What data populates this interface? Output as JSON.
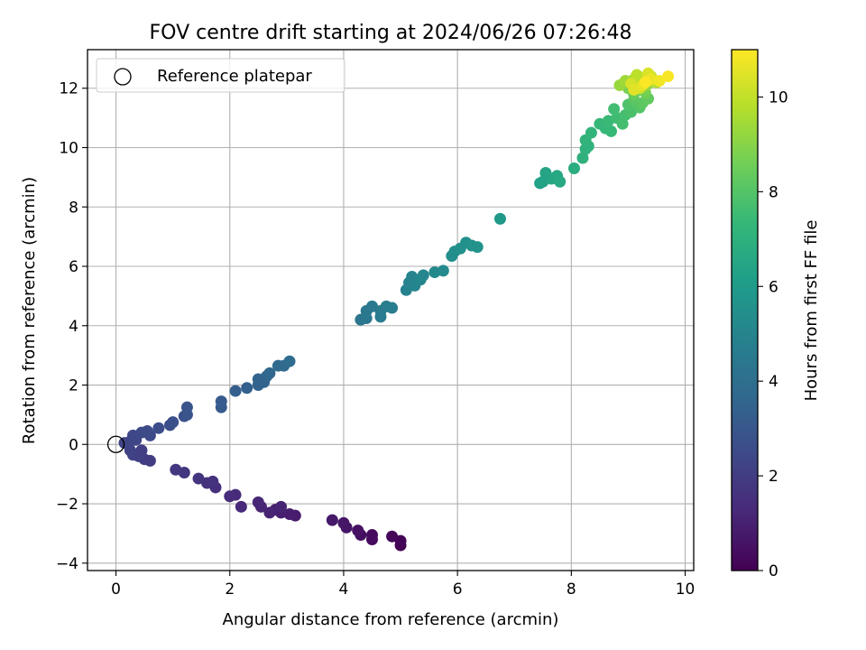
{
  "chart_data": {
    "type": "scatter",
    "title": "FOV centre drift starting at 2024/06/26 07:26:48",
    "xlabel": "Angular distance from reference (arcmin)",
    "ylabel": "Rotation from reference (arcmin)",
    "xlim": [
      -0.5,
      10.15
    ],
    "ylim": [
      -4.25,
      13.3
    ],
    "xticks": [
      0,
      2,
      4,
      6,
      8,
      10
    ],
    "yticks": [
      -4,
      -2,
      0,
      2,
      4,
      6,
      8,
      10,
      12
    ],
    "xtick_labels": [
      "0",
      "2",
      "4",
      "6",
      "8",
      "10"
    ],
    "ytick_labels": [
      "−4",
      "−2",
      "0",
      "2",
      "4",
      "6",
      "8",
      "10",
      "12"
    ],
    "grid": true,
    "legend": {
      "placement": "upper-left",
      "entries": [
        {
          "label": "Reference platepar",
          "marker": "open-circle"
        }
      ]
    },
    "reference_point": {
      "x": 0,
      "y": 0
    },
    "colorbar": {
      "label": "Hours from first FF file",
      "colormap": "viridis",
      "range": [
        0,
        11
      ],
      "ticks": [
        0,
        2,
        4,
        6,
        8,
        10
      ],
      "tick_labels": [
        "0",
        "2",
        "4",
        "6",
        "8",
        "10"
      ]
    },
    "colormap_stops": [
      "#440154",
      "#482878",
      "#3e4989",
      "#31688e",
      "#26828e",
      "#1f9e89",
      "#35b779",
      "#6ece58",
      "#b5de2b",
      "#fde725"
    ],
    "series": [
      {
        "points": [
          [
            5.0,
            -3.4,
            0.0
          ],
          [
            5.0,
            -3.25,
            0.1
          ],
          [
            4.85,
            -3.1,
            0.2
          ],
          [
            4.5,
            -3.2,
            0.3
          ],
          [
            4.5,
            -3.05,
            0.35
          ],
          [
            4.3,
            -3.05,
            0.45
          ],
          [
            4.25,
            -2.9,
            0.5
          ],
          [
            4.05,
            -2.8,
            0.6
          ],
          [
            4.0,
            -2.65,
            0.65
          ],
          [
            3.8,
            -2.55,
            0.75
          ],
          [
            3.15,
            -2.4,
            0.85
          ],
          [
            3.05,
            -2.35,
            0.9
          ],
          [
            2.9,
            -2.3,
            0.95
          ],
          [
            2.8,
            -2.2,
            1.0
          ],
          [
            2.9,
            -2.1,
            1.05
          ],
          [
            2.7,
            -2.3,
            1.1
          ],
          [
            2.55,
            -2.1,
            1.15
          ],
          [
            2.5,
            -1.95,
            1.2
          ],
          [
            2.2,
            -2.1,
            1.3
          ],
          [
            2.1,
            -1.7,
            1.35
          ],
          [
            2.0,
            -1.75,
            1.4
          ],
          [
            1.75,
            -1.45,
            1.5
          ],
          [
            1.7,
            -1.25,
            1.55
          ],
          [
            1.6,
            -1.3,
            1.6
          ],
          [
            1.45,
            -1.15,
            1.65
          ],
          [
            1.2,
            -0.95,
            1.75
          ],
          [
            1.05,
            -0.85,
            1.8
          ],
          [
            0.6,
            -0.55,
            1.95
          ],
          [
            0.5,
            -0.5,
            2.0
          ],
          [
            0.45,
            -0.2,
            2.05
          ],
          [
            0.4,
            -0.4,
            2.1
          ],
          [
            0.3,
            -0.35,
            2.15
          ],
          [
            0.25,
            -0.2,
            2.2
          ],
          [
            0.15,
            0.05,
            2.25
          ],
          [
            0.25,
            0.1,
            2.3
          ],
          [
            0.35,
            0.15,
            2.35
          ],
          [
            0.3,
            0.3,
            2.4
          ],
          [
            0.45,
            0.4,
            2.45
          ],
          [
            0.6,
            0.3,
            2.5
          ],
          [
            0.55,
            0.45,
            2.55
          ],
          [
            0.75,
            0.55,
            2.6
          ],
          [
            0.95,
            0.65,
            2.65
          ],
          [
            1.0,
            0.75,
            2.7
          ],
          [
            1.2,
            0.95,
            2.8
          ],
          [
            1.25,
            1.0,
            2.85
          ],
          [
            1.25,
            1.25,
            2.9
          ],
          [
            1.85,
            1.25,
            3.1
          ],
          [
            1.85,
            1.45,
            3.15
          ],
          [
            2.1,
            1.8,
            3.3
          ],
          [
            2.3,
            1.9,
            3.35
          ],
          [
            2.5,
            2.0,
            3.45
          ],
          [
            2.5,
            2.2,
            3.5
          ],
          [
            2.6,
            2.1,
            3.55
          ],
          [
            2.65,
            2.3,
            3.6
          ],
          [
            2.7,
            2.4,
            3.65
          ],
          [
            2.85,
            2.65,
            3.75
          ],
          [
            2.95,
            2.65,
            3.8
          ],
          [
            3.05,
            2.8,
            3.85
          ],
          [
            4.3,
            4.2,
            4.3
          ],
          [
            4.4,
            4.25,
            4.35
          ],
          [
            4.4,
            4.5,
            4.4
          ],
          [
            4.5,
            4.65,
            4.45
          ],
          [
            4.65,
            4.5,
            4.5
          ],
          [
            4.65,
            4.3,
            4.55
          ],
          [
            4.75,
            4.65,
            4.6
          ],
          [
            4.85,
            4.6,
            4.65
          ],
          [
            5.1,
            5.2,
            4.85
          ],
          [
            5.15,
            5.45,
            4.9
          ],
          [
            5.2,
            5.65,
            4.95
          ],
          [
            5.25,
            5.35,
            5.0
          ],
          [
            5.35,
            5.55,
            5.05
          ],
          [
            5.4,
            5.7,
            5.1
          ],
          [
            5.6,
            5.8,
            5.2
          ],
          [
            5.75,
            5.85,
            5.25
          ],
          [
            5.9,
            6.35,
            5.4
          ],
          [
            5.95,
            6.5,
            5.45
          ],
          [
            6.05,
            6.6,
            5.5
          ],
          [
            6.15,
            6.8,
            5.55
          ],
          [
            6.25,
            6.7,
            5.6
          ],
          [
            6.35,
            6.65,
            5.65
          ],
          [
            6.75,
            7.6,
            5.85
          ],
          [
            7.45,
            8.8,
            6.3
          ],
          [
            7.5,
            8.85,
            6.35
          ],
          [
            7.55,
            9.15,
            6.4
          ],
          [
            7.65,
            8.95,
            6.5
          ],
          [
            7.75,
            9.05,
            6.55
          ],
          [
            7.8,
            8.85,
            6.6
          ],
          [
            8.05,
            9.3,
            6.85
          ],
          [
            8.2,
            9.65,
            7.0
          ],
          [
            8.25,
            9.95,
            7.05
          ],
          [
            8.3,
            10.05,
            7.1
          ],
          [
            8.25,
            10.25,
            7.15
          ],
          [
            8.35,
            10.5,
            7.2
          ],
          [
            8.5,
            10.8,
            7.3
          ],
          [
            8.6,
            10.65,
            7.35
          ],
          [
            8.7,
            10.55,
            7.4
          ],
          [
            8.65,
            10.9,
            7.45
          ],
          [
            8.8,
            11.0,
            7.55
          ],
          [
            8.75,
            11.3,
            7.6
          ],
          [
            8.9,
            10.8,
            7.65
          ],
          [
            8.95,
            11.1,
            7.7
          ],
          [
            9.05,
            11.2,
            7.8
          ],
          [
            9.0,
            11.45,
            7.9
          ],
          [
            9.2,
            11.35,
            8.0
          ],
          [
            9.1,
            11.6,
            8.1
          ],
          [
            9.25,
            11.5,
            8.2
          ],
          [
            9.35,
            11.65,
            8.3
          ],
          [
            9.1,
            11.8,
            8.4
          ],
          [
            9.2,
            11.95,
            8.5
          ],
          [
            9.3,
            11.85,
            8.6
          ],
          [
            9.0,
            12.0,
            8.7
          ],
          [
            9.15,
            12.1,
            8.8
          ],
          [
            9.3,
            12.05,
            8.9
          ],
          [
            9.05,
            12.2,
            9.0
          ],
          [
            9.2,
            12.25,
            9.1
          ],
          [
            9.35,
            12.15,
            9.2
          ],
          [
            8.85,
            12.1,
            9.3
          ],
          [
            8.95,
            12.25,
            9.4
          ],
          [
            9.1,
            12.3,
            9.5
          ],
          [
            9.25,
            12.35,
            9.6
          ],
          [
            9.4,
            12.25,
            9.7
          ],
          [
            9.5,
            12.2,
            9.8
          ],
          [
            9.15,
            12.45,
            9.9
          ],
          [
            9.3,
            12.3,
            10.0
          ],
          [
            9.4,
            12.4,
            10.1
          ],
          [
            9.2,
            12.0,
            10.2
          ],
          [
            9.05,
            12.15,
            10.3
          ],
          [
            9.35,
            12.5,
            10.4
          ],
          [
            9.1,
            11.95,
            10.5
          ],
          [
            9.25,
            12.1,
            10.6
          ],
          [
            9.4,
            12.3,
            10.7
          ],
          [
            9.55,
            12.25,
            10.8
          ],
          [
            9.7,
            12.4,
            10.9
          ],
          [
            9.3,
            12.2,
            10.95
          ]
        ]
      }
    ]
  }
}
